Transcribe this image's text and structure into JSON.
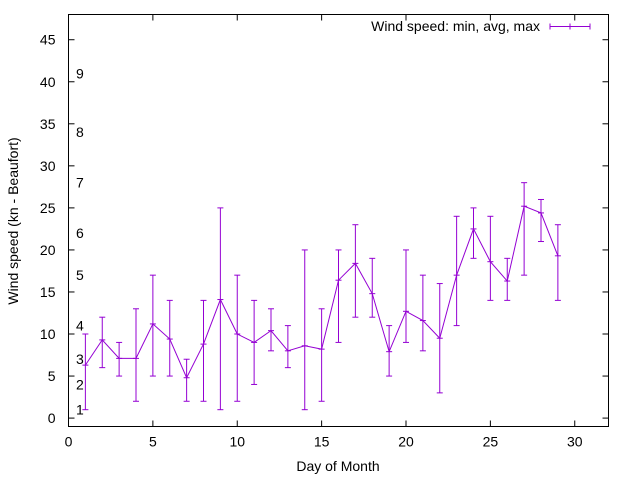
{
  "chart_data": {
    "type": "line",
    "title": "",
    "xlabel": "Day of Month",
    "ylabel": "Wind speed (kn - Beaufort)",
    "xlim": [
      0,
      32
    ],
    "ylim": [
      -1,
      48
    ],
    "x_ticks": [
      0,
      5,
      10,
      15,
      20,
      25,
      30
    ],
    "y_ticks": [
      0,
      5,
      10,
      15,
      20,
      25,
      30,
      35,
      40,
      45
    ],
    "beaufort_marks": [
      {
        "label": "1",
        "value": 1
      },
      {
        "label": "2",
        "value": 4
      },
      {
        "label": "3",
        "value": 7
      },
      {
        "label": "4",
        "value": 11
      },
      {
        "label": "5",
        "value": 17
      },
      {
        "label": "6",
        "value": 22
      },
      {
        "label": "7",
        "value": 28
      },
      {
        "label": "8",
        "value": 34
      },
      {
        "label": "9",
        "value": 41
      }
    ],
    "grid": false,
    "legend_position": "top-right",
    "series": [
      {
        "name": "Wind speed: min, avg, max",
        "color": "#9400d3",
        "x": [
          1,
          2,
          3,
          4,
          5,
          6,
          7,
          8,
          9,
          10,
          11,
          12,
          13,
          14,
          15,
          16,
          17,
          18,
          19,
          20,
          21,
          22,
          23,
          24,
          25,
          26,
          27,
          28,
          29
        ],
        "avg": [
          6.3,
          9.3,
          7.1,
          7.1,
          11.2,
          9.4,
          4.8,
          8.8,
          14.1,
          10,
          9,
          10.4,
          8,
          8.6,
          8.2,
          16.4,
          18.4,
          14.8,
          7.9,
          12.7,
          11.6,
          9.5,
          17,
          22.5,
          18.6,
          16.3,
          25.2,
          24.4,
          19.3
        ],
        "min": [
          1,
          6,
          5,
          2,
          5,
          5,
          2,
          2,
          1,
          2,
          4,
          8,
          6,
          1,
          2,
          9,
          12,
          12,
          5,
          9,
          8,
          3,
          11,
          19,
          14,
          14,
          17,
          21,
          14
        ],
        "max": [
          10,
          12,
          9,
          13,
          17,
          14,
          7,
          14,
          25,
          17,
          14,
          13,
          11,
          20,
          13,
          20,
          23,
          19,
          11,
          20,
          17,
          16,
          24,
          25,
          24,
          19,
          28,
          26,
          23
        ]
      }
    ]
  }
}
